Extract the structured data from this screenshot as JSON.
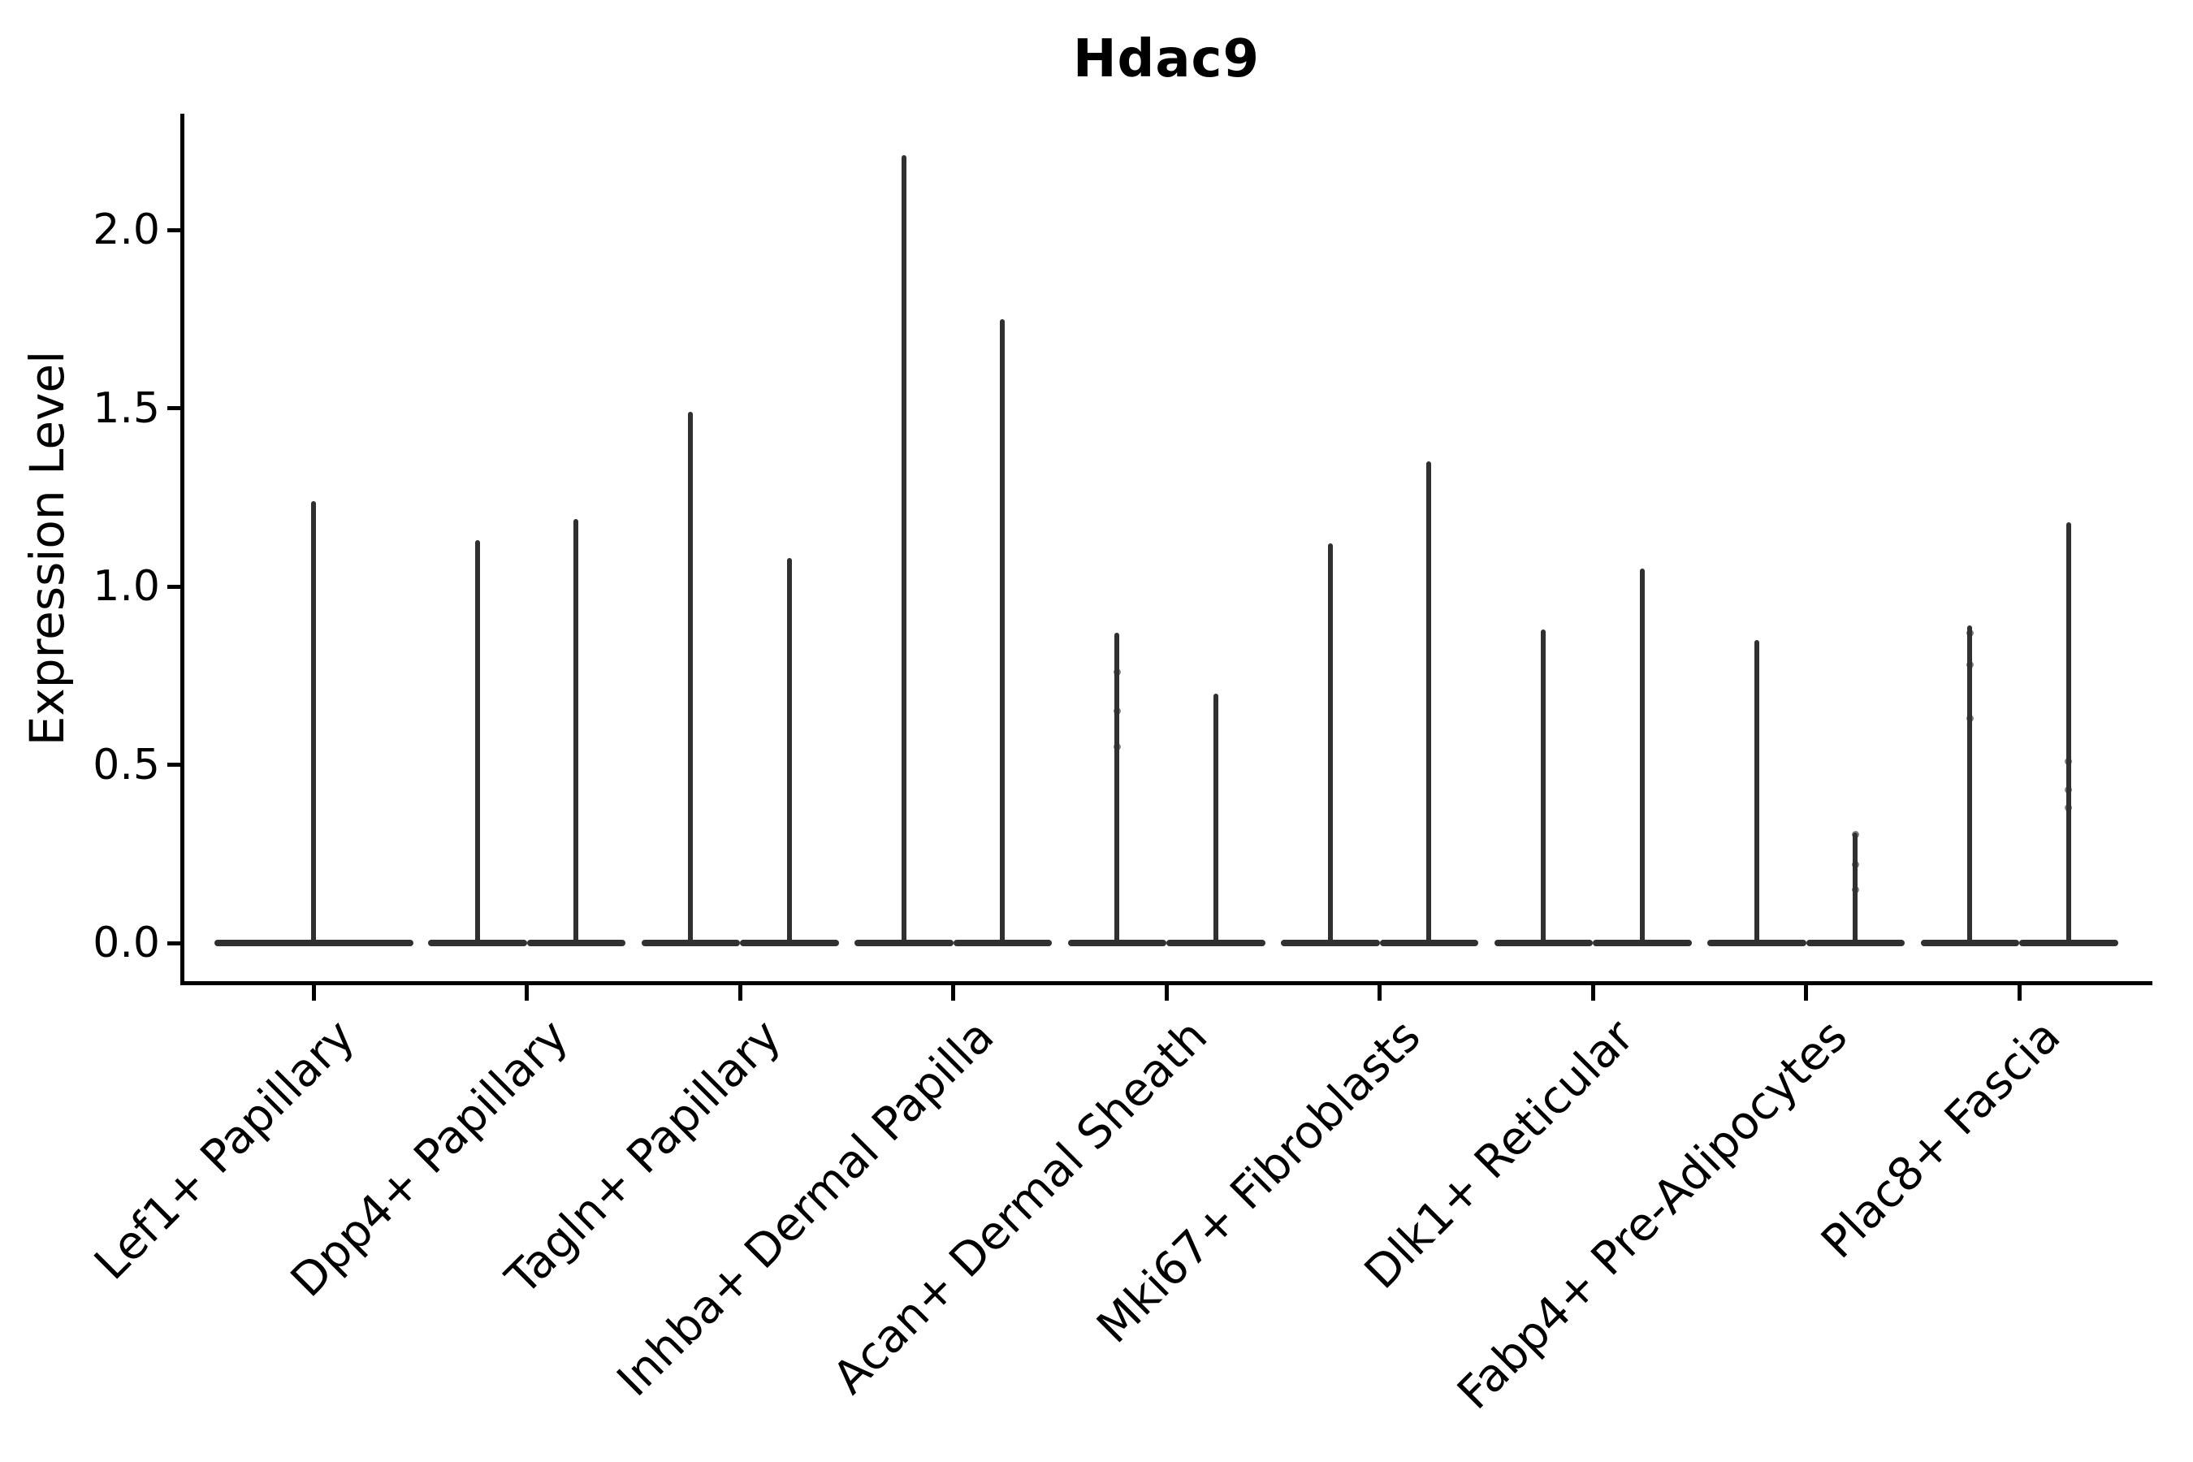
{
  "chart_data": {
    "type": "violin",
    "title": "Hdac9",
    "ylabel": "Expression Level",
    "xlabel": "",
    "grid": false,
    "legend": null,
    "ylim": [
      -0.11,
      2.33
    ],
    "yticks": [
      0.0,
      0.5,
      1.0,
      1.5,
      2.0
    ],
    "ytick_labels": [
      "0.0",
      "0.5",
      "1.0",
      "1.5",
      "2.0"
    ],
    "shape_note": "Each violin is squashed flat at expression 0 (wide base bar) with a single thin vertical tail rising to its maximum expression value; most categories contain two side-by-side violins, the first category has one full-width violin.",
    "violin_color": "#303030",
    "axis_color": "#000000",
    "categories": [
      {
        "label": "Lef1+ Papillary",
        "violins": [
          {
            "position": "center",
            "max_expression": 1.24,
            "dots": []
          }
        ]
      },
      {
        "label": "Dpp4+ Papillary",
        "violins": [
          {
            "position": "left",
            "max_expression": 1.13,
            "dots": []
          },
          {
            "position": "right",
            "max_expression": 1.19,
            "dots": []
          }
        ]
      },
      {
        "label": "Tagln+ Papillary",
        "violins": [
          {
            "position": "left",
            "max_expression": 1.49,
            "dots": []
          },
          {
            "position": "right",
            "max_expression": 1.08,
            "dots": []
          }
        ]
      },
      {
        "label": "Inhba+ Dermal Papilla",
        "violins": [
          {
            "position": "left",
            "max_expression": 2.21,
            "dots": []
          },
          {
            "position": "right",
            "max_expression": 1.75,
            "dots": []
          }
        ]
      },
      {
        "label": "Acan+ Dermal Sheath",
        "violins": [
          {
            "position": "left",
            "max_expression": 0.87,
            "dots": [
              0.76,
              0.65,
              0.55
            ]
          },
          {
            "position": "right",
            "max_expression": 0.7,
            "dots": []
          }
        ]
      },
      {
        "label": "Mki67+ Fibroblasts",
        "violins": [
          {
            "position": "left",
            "max_expression": 1.12,
            "dots": []
          },
          {
            "position": "right",
            "max_expression": 1.35,
            "dots": []
          }
        ]
      },
      {
        "label": "Dlk1+ Reticular",
        "violins": [
          {
            "position": "left",
            "max_expression": 0.88,
            "dots": []
          },
          {
            "position": "right",
            "max_expression": 1.05,
            "dots": []
          }
        ]
      },
      {
        "label": "Fabp4+ Pre-Adipocytes",
        "violins": [
          {
            "position": "left",
            "max_expression": 0.85,
            "dots": []
          },
          {
            "position": "right",
            "max_expression": 0.31,
            "dots": [
              0.305,
              0.22,
              0.15
            ]
          }
        ]
      },
      {
        "label": "Plac8+ Fascia",
        "violins": [
          {
            "position": "left",
            "max_expression": 0.89,
            "dots": [
              0.87,
              0.78,
              0.63
            ]
          },
          {
            "position": "right",
            "max_expression": 1.18,
            "dots": [
              0.51,
              0.43,
              0.38
            ]
          }
        ]
      }
    ]
  }
}
